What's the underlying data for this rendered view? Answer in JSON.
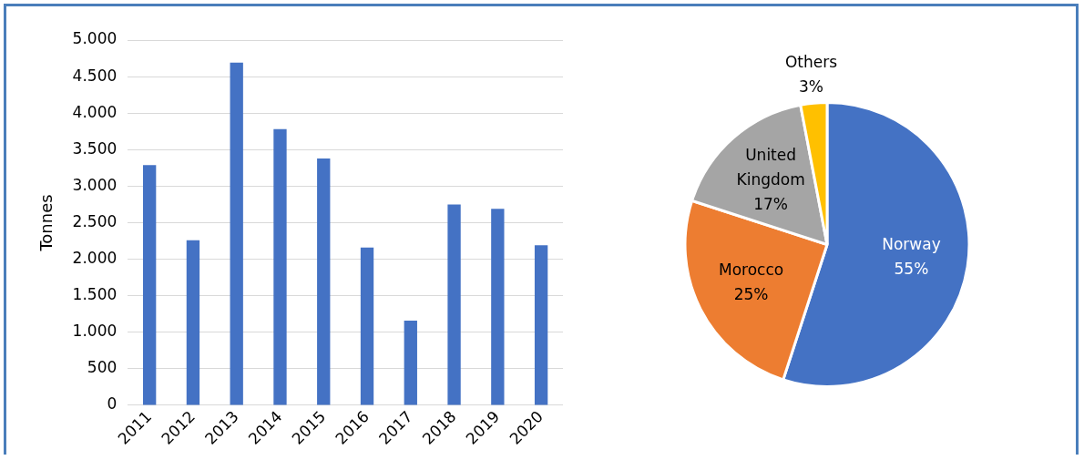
{
  "chart_data": [
    {
      "type": "bar",
      "ylabel": "Tonnes",
      "categories": [
        "2011",
        "2012",
        "2013",
        "2014",
        "2015",
        "2016",
        "2017",
        "2018",
        "2019",
        "2020"
      ],
      "values": [
        3290,
        2260,
        4690,
        3780,
        3380,
        2160,
        1160,
        2750,
        2690,
        2190
      ],
      "color": "#4472c4",
      "ylim": [
        0,
        5000
      ],
      "yticks": [
        {
          "value": 0,
          "label": "0"
        },
        {
          "value": 500,
          "label": "500"
        },
        {
          "value": 1000,
          "label": "1.000"
        },
        {
          "value": 1500,
          "label": "1.500"
        },
        {
          "value": 2000,
          "label": "2.000"
        },
        {
          "value": 2500,
          "label": "2.500"
        },
        {
          "value": 3000,
          "label": "3.000"
        },
        {
          "value": 3500,
          "label": "3.500"
        },
        {
          "value": 4000,
          "label": "4.000"
        },
        {
          "value": 4500,
          "label": "4.500"
        },
        {
          "value": 5000,
          "label": "5.000"
        }
      ],
      "grid": "y"
    },
    {
      "type": "pie",
      "categories": [
        "Norway",
        "Morocco",
        "United Kingdom",
        "Others"
      ],
      "values": [
        55,
        25,
        17,
        3
      ],
      "colors": [
        "#4472c4",
        "#ed7d31",
        "#a5a5a5",
        "#ffc000"
      ],
      "value_labels": [
        "55%",
        "25%",
        "17%",
        "3%"
      ]
    }
  ]
}
